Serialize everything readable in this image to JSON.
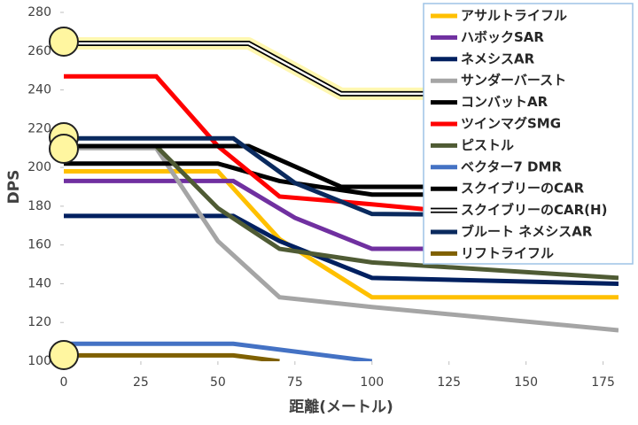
{
  "chart_data": {
    "type": "line",
    "xlabel": "距離(メートル)",
    "ylabel": "DPS",
    "xlim": [
      0,
      180
    ],
    "xticks": [
      0,
      25,
      50,
      75,
      100,
      125,
      150,
      175
    ],
    "ylim": [
      100,
      280
    ],
    "yticks": [
      100,
      120,
      140,
      160,
      180,
      200,
      220,
      240,
      260,
      280
    ],
    "legend": "upper right",
    "series": [
      {
        "name": "アサルトライフル",
        "color": "#ffc000",
        "x": [
          0,
          50,
          70,
          100,
          180
        ],
        "values": [
          198,
          198,
          163,
          133,
          133
        ]
      },
      {
        "name": "ハボックSAR",
        "color": "#7030a0",
        "x": [
          0,
          55,
          75,
          100,
          180
        ],
        "values": [
          193,
          193,
          174,
          158,
          158
        ]
      },
      {
        "name": "ネメシスAR",
        "color": "#002060",
        "x": [
          0,
          55,
          70,
          100,
          180
        ],
        "values": [
          175,
          175,
          162,
          143,
          140
        ]
      },
      {
        "name": "サンダーバースト",
        "color": "#a5a5a5",
        "x": [
          0,
          30,
          50,
          70,
          100,
          180
        ],
        "values": [
          210,
          210,
          162,
          133,
          128,
          116
        ]
      },
      {
        "name": "コンバットAR",
        "color": "#000000",
        "x": [
          0,
          50,
          70,
          100,
          180
        ],
        "values": [
          202,
          202,
          193,
          186,
          186
        ]
      },
      {
        "name": "ツインマグSMG",
        "color": "#ff0000",
        "x": [
          0,
          30,
          50,
          70,
          100,
          120,
          180
        ],
        "values": [
          247,
          247,
          211,
          185,
          181,
          178,
          178
        ]
      },
      {
        "name": "ピストル",
        "color": "#4f5b34",
        "x": [
          0,
          30,
          50,
          70,
          100,
          180
        ],
        "values": [
          211,
          211,
          179,
          158,
          151,
          143
        ]
      },
      {
        "name": "ベクター7 DMR",
        "color": "#4472c4",
        "x": [
          0,
          55,
          100
        ],
        "values": [
          109,
          109,
          100
        ]
      },
      {
        "name": "スクイブリーのCAR",
        "color": "#000000",
        "x": [
          0,
          60,
          90,
          180
        ],
        "values": [
          211,
          211,
          190,
          190
        ]
      },
      {
        "name": "スクイブリーのCAR(H)",
        "color": "#ffffff",
        "x": [
          0,
          60,
          90,
          180
        ],
        "values": [
          264,
          264,
          238,
          238
        ]
      },
      {
        "name": "ブルート ネメシスAR",
        "color": "#0a2a5e",
        "x": [
          0,
          55,
          75,
          100,
          180
        ],
        "values": [
          215,
          215,
          192,
          176,
          175
        ]
      },
      {
        "name": "リフトライフル",
        "color": "#7f6000",
        "x": [
          0,
          55,
          70
        ],
        "values": [
          103,
          103,
          100
        ]
      }
    ]
  }
}
